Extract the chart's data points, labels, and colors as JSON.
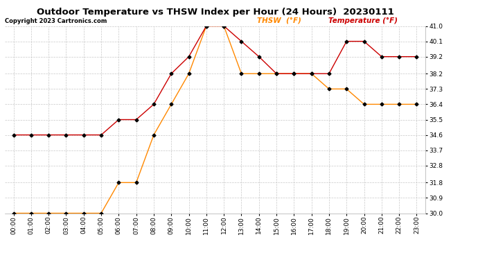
{
  "title": "Outdoor Temperature vs THSW Index per Hour (24 Hours)  20230111",
  "copyright": "Copyright 2023 Cartronics.com",
  "legend_thsw": "THSW  (°F)",
  "legend_temp": "Temperature (°F)",
  "hours": [
    "00:00",
    "01:00",
    "02:00",
    "03:00",
    "04:00",
    "05:00",
    "06:00",
    "07:00",
    "08:00",
    "09:00",
    "10:00",
    "11:00",
    "12:00",
    "13:00",
    "14:00",
    "15:00",
    "16:00",
    "17:00",
    "18:00",
    "19:00",
    "20:00",
    "21:00",
    "22:00",
    "23:00"
  ],
  "temperature": [
    34.6,
    34.6,
    34.6,
    34.6,
    34.6,
    34.6,
    35.5,
    35.5,
    36.4,
    38.2,
    39.2,
    41.0,
    41.0,
    40.1,
    39.2,
    38.2,
    38.2,
    38.2,
    38.2,
    40.1,
    40.1,
    39.2,
    39.2,
    39.2
  ],
  "thsw": [
    30.0,
    30.0,
    30.0,
    30.0,
    30.0,
    30.0,
    31.8,
    31.8,
    34.6,
    36.4,
    38.2,
    41.0,
    41.0,
    38.2,
    38.2,
    38.2,
    38.2,
    38.2,
    37.3,
    37.3,
    36.4,
    36.4,
    36.4,
    36.4
  ],
  "ylim_min": 30.0,
  "ylim_max": 41.0,
  "yticks": [
    30.0,
    30.9,
    31.8,
    32.8,
    33.7,
    34.6,
    35.5,
    36.4,
    37.3,
    38.2,
    39.2,
    40.1,
    41.0
  ],
  "temp_color": "#cc0000",
  "thsw_color": "#ff8800",
  "marker_color": "#000000",
  "background_color": "#ffffff",
  "grid_color": "#c8c8c8",
  "title_fontsize": 9.5,
  "copyright_fontsize": 6,
  "legend_fontsize": 7.5,
  "axis_fontsize": 6.5,
  "marker_size": 2.5,
  "line_width": 1.0
}
